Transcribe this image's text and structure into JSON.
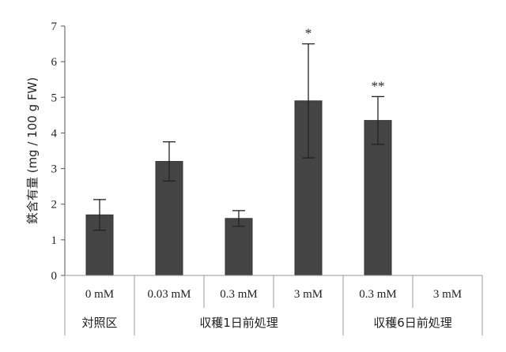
{
  "chart_data": {
    "type": "bar",
    "ylabel": "鉄含有量 (mg / 100 g FW)",
    "ylim": [
      0,
      7
    ],
    "yticks": [
      "0",
      "1",
      "2",
      "3",
      "4",
      "5",
      "6",
      "7"
    ],
    "categories": [
      "0 mM",
      "0.03 mM",
      "0.3 mM",
      "3 mM",
      "0.3 mM",
      "3 mM"
    ],
    "groups": [
      {
        "label": "対照区",
        "span": 1
      },
      {
        "label": "収穫1日前処理",
        "span": 3
      },
      {
        "label": "収穫6日前処理",
        "span": 2
      }
    ],
    "values": [
      1.7,
      3.2,
      1.6,
      4.9,
      4.35,
      null
    ],
    "errors": [
      0.43,
      0.55,
      0.22,
      1.6,
      0.67,
      null
    ],
    "significance": [
      "",
      "",
      "",
      "*",
      "**",
      ""
    ],
    "grid": false,
    "bar_color": "#444444"
  }
}
